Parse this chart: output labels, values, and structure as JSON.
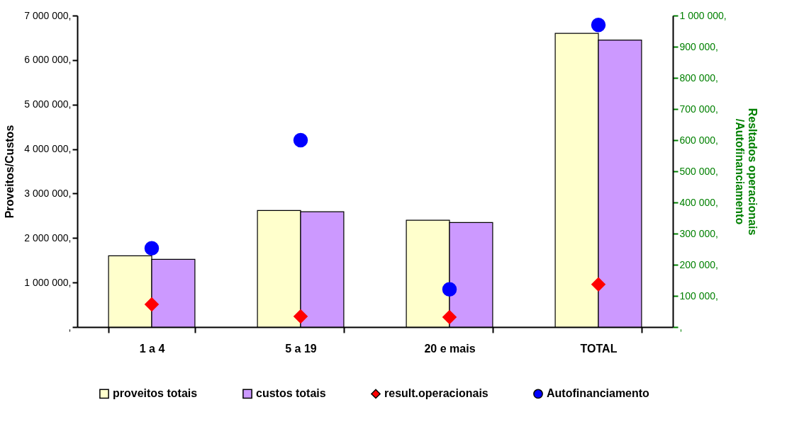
{
  "chart_data": {
    "type": "bar",
    "ylabel": "Proveitos/Custos",
    "y2label": "Resltados operacionais\n/Autofinanciamento",
    "categories": [
      "1 a 4",
      "5 a 19",
      "20 e mais",
      "TOTAL"
    ],
    "series": [
      {
        "name": "proveitos totais",
        "color": "#ffffcc",
        "values": [
          1600000,
          2620000,
          2400000,
          6600000
        ]
      },
      {
        "name": "custos totais",
        "color": "#cc99ff",
        "values": [
          1520000,
          2590000,
          2350000,
          6450000
        ]
      },
      {
        "name": "result.operacionais",
        "type": "scatter",
        "axis": "y2",
        "marker": "diamond",
        "color": "#ff0000",
        "values": [
          73000,
          34000,
          32000,
          137000
        ]
      },
      {
        "name": "Autofinanciamento",
        "type": "scatter",
        "axis": "y2",
        "marker": "circle",
        "color": "#0000ff",
        "values": [
          253000,
          600000,
          121000,
          970000
        ]
      }
    ],
    "ylim": [
      0,
      7000000
    ],
    "yticks": [
      {
        "value": 0,
        "label": ","
      },
      {
        "value": 1000000,
        "label": "1 000 000,"
      },
      {
        "value": 2000000,
        "label": "2 000 000,"
      },
      {
        "value": 3000000,
        "label": "3 000 000,"
      },
      {
        "value": 4000000,
        "label": "4 000 000,"
      },
      {
        "value": 5000000,
        "label": "5 000 000,"
      },
      {
        "value": 6000000,
        "label": "6 000 000,"
      },
      {
        "value": 7000000,
        "label": "7 000 000,"
      }
    ],
    "y2lim": [
      0,
      1000000
    ],
    "y2ticks": [
      {
        "value": 0,
        "label": ","
      },
      {
        "value": 100000,
        "label": "100 000,"
      },
      {
        "value": 200000,
        "label": "200 000,"
      },
      {
        "value": 300000,
        "label": "300 000,"
      },
      {
        "value": 400000,
        "label": "400 000,"
      },
      {
        "value": 500000,
        "label": "500 000,"
      },
      {
        "value": 600000,
        "label": "600 000,"
      },
      {
        "value": 700000,
        "label": "700 000,"
      },
      {
        "value": 800000,
        "label": "800 000,"
      },
      {
        "value": 900000,
        "label": "900 000,"
      },
      {
        "value": 1000000,
        "label": "1 000 000,"
      }
    ],
    "grid": false,
    "legend": "bottom"
  }
}
